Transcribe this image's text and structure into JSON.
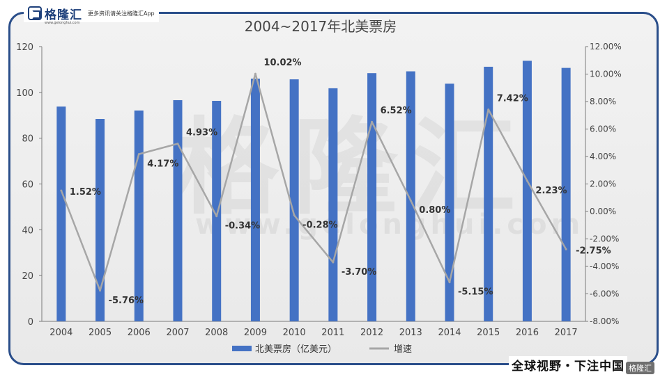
{
  "brand": {
    "name": "格隆汇",
    "tagline": "更多资讯请关注格隆汇App",
    "domain": "www.gelonghui.com"
  },
  "watermark": {
    "text": "格隆汇",
    "url": "www.gelonghui.com"
  },
  "footer": {
    "slogan": "全球视野・下注中国",
    "badge": "格隆汇"
  },
  "colors": {
    "bar": "#4472c4",
    "line": "#a6a6a6",
    "frame": "#2a4e8a"
  },
  "chart_data": {
    "type": "bar",
    "title": "2004~2017年北美票房",
    "categories": [
      "2004",
      "2005",
      "2006",
      "2007",
      "2008",
      "2009",
      "2010",
      "2011",
      "2012",
      "2013",
      "2014",
      "2015",
      "2016",
      "2017"
    ],
    "series": [
      {
        "name": "北美票房（亿美元）",
        "type": "bar",
        "axis": "left",
        "values": [
          93.8,
          88.4,
          92.1,
          96.6,
          96.3,
          106.0,
          105.7,
          101.8,
          108.4,
          109.2,
          103.8,
          111.2,
          113.8,
          110.7
        ]
      },
      {
        "name": "增速",
        "type": "line",
        "axis": "right",
        "values": [
          1.52,
          -5.76,
          4.17,
          4.93,
          -0.34,
          10.02,
          -0.28,
          -3.7,
          6.52,
          0.8,
          -5.15,
          7.42,
          2.23,
          -2.75
        ],
        "labels": [
          "1.52%",
          "-5.76%",
          "4.17%",
          "4.93%",
          "-0.34%",
          "10.02%",
          "-0.28%",
          "-3.70%",
          "6.52%",
          "0.80%",
          "-5.15%",
          "7.42%",
          "2.23%",
          "-2.75%"
        ]
      }
    ],
    "y_left": {
      "min": 0,
      "max": 120,
      "ticks": [
        "0",
        "20",
        "40",
        "60",
        "80",
        "100",
        "120"
      ]
    },
    "y_right": {
      "min": -8,
      "max": 12,
      "ticks": [
        "-8.00%",
        "-6.00%",
        "-4.00%",
        "-2.00%",
        "0.00%",
        "2.00%",
        "4.00%",
        "6.00%",
        "8.00%",
        "10.00%",
        "12.00%"
      ]
    },
    "legend_position": "bottom",
    "grid": false
  }
}
